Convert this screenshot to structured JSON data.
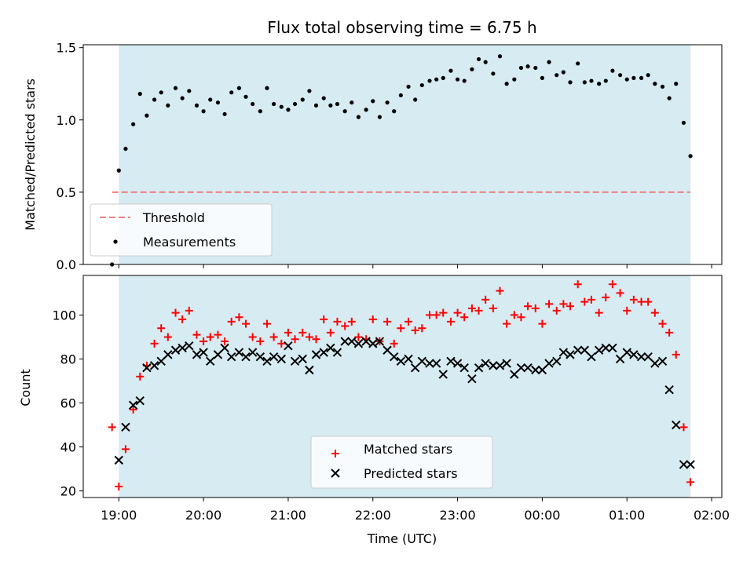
{
  "chart_data": {
    "title": "Flux total observing time = 6.75 h",
    "x_axis": {
      "label": "Time (UTC)",
      "ticks": [
        "19:00",
        "20:00",
        "21:00",
        "22:00",
        "23:00",
        "00:00",
        "01:00",
        "02:00"
      ],
      "range_hours": [
        18.58,
        26.12
      ],
      "observing_window_hours": [
        19.0,
        25.75
      ]
    },
    "panels": [
      {
        "type": "scatter",
        "ylabel": "Matched/Predicted stars",
        "ylim": [
          0,
          1.52
        ],
        "yticks": [
          "0.0",
          "0.5",
          "1.0",
          "1.5"
        ],
        "legend_position": "lower-left",
        "threshold": {
          "name": "Threshold",
          "value": 0.5,
          "color": "#f08080"
        },
        "series": [
          {
            "name": "Measurements",
            "color": "#000000",
            "x": [
              18.92,
              19.0,
              19.08,
              19.17,
              19.25,
              19.33,
              19.42,
              19.5,
              19.58,
              19.67,
              19.75,
              19.83,
              19.92,
              20.0,
              20.08,
              20.17,
              20.25,
              20.33,
              20.42,
              20.5,
              20.58,
              20.67,
              20.75,
              20.83,
              20.92,
              21.0,
              21.08,
              21.17,
              21.25,
              21.33,
              21.42,
              21.5,
              21.58,
              21.67,
              21.75,
              21.83,
              21.92,
              22.0,
              22.08,
              22.17,
              22.25,
              22.33,
              22.42,
              22.5,
              22.58,
              22.67,
              22.75,
              22.83,
              22.92,
              23.0,
              23.08,
              23.17,
              23.25,
              23.33,
              23.42,
              23.5,
              23.58,
              23.67,
              23.75,
              23.83,
              23.92,
              24.0,
              24.08,
              24.17,
              24.25,
              24.33,
              24.42,
              24.5,
              24.58,
              24.67,
              24.75,
              24.83,
              24.92,
              25.0,
              25.08,
              25.17,
              25.25,
              25.33,
              25.42,
              25.5,
              25.58,
              25.67,
              25.75
            ],
            "y": [
              0.0,
              0.65,
              0.8,
              0.97,
              1.18,
              1.03,
              1.14,
              1.19,
              1.1,
              1.22,
              1.15,
              1.2,
              1.1,
              1.06,
              1.14,
              1.12,
              1.04,
              1.19,
              1.22,
              1.16,
              1.11,
              1.06,
              1.22,
              1.11,
              1.09,
              1.07,
              1.11,
              1.14,
              1.2,
              1.1,
              1.15,
              1.1,
              1.11,
              1.06,
              1.12,
              1.02,
              1.07,
              1.13,
              1.02,
              1.12,
              1.06,
              1.17,
              1.23,
              1.14,
              1.24,
              1.27,
              1.28,
              1.29,
              1.34,
              1.28,
              1.27,
              1.35,
              1.42,
              1.4,
              1.32,
              1.44,
              1.25,
              1.28,
              1.36,
              1.37,
              1.36,
              1.29,
              1.4,
              1.31,
              1.33,
              1.26,
              1.39,
              1.26,
              1.27,
              1.25,
              1.27,
              1.34,
              1.31,
              1.28,
              1.29,
              1.29,
              1.31,
              1.25,
              1.23,
              1.15,
              1.25,
              0.98,
              0.75
            ]
          }
        ]
      },
      {
        "type": "scatter",
        "ylabel": "Count",
        "ylim": [
          17,
          118
        ],
        "yticks": [
          "20",
          "40",
          "60",
          "80",
          "100"
        ],
        "legend_position": "lower-center",
        "series": [
          {
            "name": "Matched stars",
            "marker": "plus",
            "color": "#ff0000",
            "x": [
              18.92,
              19.0,
              19.08,
              19.17,
              19.25,
              19.33,
              19.42,
              19.5,
              19.58,
              19.67,
              19.75,
              19.83,
              19.92,
              20.0,
              20.08,
              20.17,
              20.25,
              20.33,
              20.42,
              20.5,
              20.58,
              20.67,
              20.75,
              20.83,
              20.92,
              21.0,
              21.08,
              21.17,
              21.25,
              21.33,
              21.42,
              21.5,
              21.58,
              21.67,
              21.75,
              21.83,
              21.92,
              22.0,
              22.08,
              22.17,
              22.25,
              22.33,
              22.42,
              22.5,
              22.58,
              22.67,
              22.75,
              22.83,
              22.92,
              23.0,
              23.08,
              23.17,
              23.25,
              23.33,
              23.42,
              23.5,
              23.58,
              23.67,
              23.75,
              23.83,
              23.92,
              24.0,
              24.08,
              24.17,
              24.25,
              24.33,
              24.42,
              24.5,
              24.58,
              24.67,
              24.75,
              24.83,
              24.92,
              25.0,
              25.08,
              25.17,
              25.25,
              25.33,
              25.42,
              25.5,
              25.58,
              25.67,
              25.75
            ],
            "y": [
              49,
              22,
              39,
              57,
              72,
              77,
              87,
              94,
              90,
              101,
              98,
              102,
              91,
              88,
              90,
              91,
              88,
              97,
              99,
              96,
              90,
              88,
              96,
              90,
              87,
              92,
              89,
              92,
              90,
              89,
              98,
              92,
              97,
              95,
              97,
              90,
              89,
              98,
              88,
              97,
              87,
              94,
              97,
              93,
              94,
              100,
              100,
              101,
              97,
              101,
              99,
              103,
              102,
              107,
              103,
              111,
              96,
              100,
              99,
              104,
              103,
              96,
              105,
              102,
              105,
              104,
              114,
              106,
              107,
              101,
              108,
              114,
              110,
              102,
              107,
              106,
              106,
              101,
              96,
              92,
              82,
              49,
              24
            ]
          },
          {
            "name": "Predicted stars",
            "marker": "x",
            "color": "#000000",
            "x": [
              19.0,
              19.08,
              19.17,
              19.25,
              19.33,
              19.42,
              19.5,
              19.58,
              19.67,
              19.75,
              19.83,
              19.92,
              20.0,
              20.08,
              20.17,
              20.25,
              20.33,
              20.42,
              20.5,
              20.58,
              20.67,
              20.75,
              20.83,
              20.92,
              21.0,
              21.08,
              21.17,
              21.25,
              21.33,
              21.42,
              21.5,
              21.58,
              21.67,
              21.75,
              21.83,
              21.92,
              22.0,
              22.08,
              22.17,
              22.25,
              22.33,
              22.42,
              22.5,
              22.58,
              22.67,
              22.75,
              22.83,
              22.92,
              23.0,
              23.08,
              23.17,
              23.25,
              23.33,
              23.42,
              23.5,
              23.58,
              23.67,
              23.75,
              23.83,
              23.92,
              24.0,
              24.08,
              24.17,
              24.25,
              24.33,
              24.42,
              24.5,
              24.58,
              24.67,
              24.75,
              24.83,
              24.92,
              25.0,
              25.08,
              25.17,
              25.25,
              25.33,
              25.42,
              25.5,
              25.58,
              25.67,
              25.75
            ],
            "y": [
              34,
              49,
              59,
              61,
              76,
              77,
              79,
              82,
              84,
              85,
              86,
              82,
              83,
              79,
              82,
              85,
              81,
              83,
              81,
              83,
              81,
              79,
              81,
              80,
              86,
              79,
              80,
              75,
              82,
              83,
              85,
              83,
              88,
              88,
              87,
              88,
              87,
              88,
              84,
              81,
              79,
              80,
              76,
              79,
              78,
              78,
              73,
              79,
              78,
              76,
              71,
              76,
              78,
              77,
              77,
              78,
              73,
              76,
              76,
              75,
              75,
              78,
              79,
              83,
              82,
              84,
              84,
              81,
              84,
              85,
              85,
              80,
              83,
              82,
              81,
              81,
              78,
              79,
              66,
              50,
              32,
              32
            ]
          }
        ]
      }
    ]
  }
}
